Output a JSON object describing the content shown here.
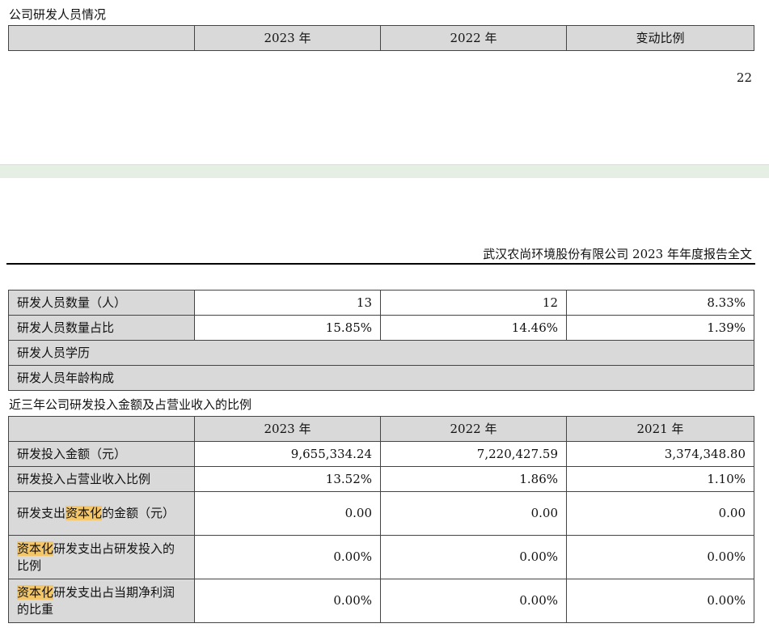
{
  "page1": {
    "section_title": "公司研发人员情况",
    "header": [
      "",
      "2023 年",
      "2022 年",
      "变动比例"
    ],
    "page_number": "22"
  },
  "page2": {
    "running_header": "武汉农尚环境股份有限公司 2023 年年度报告全文",
    "staff_rows": [
      {
        "label": "研发人员数量（人）",
        "v2023": "13",
        "v2022": "12",
        "change": "8.33%"
      },
      {
        "label": "研发人员数量占比",
        "v2023": "15.85%",
        "v2022": "14.46%",
        "change": "1.39%"
      },
      {
        "label": "研发人员学历"
      },
      {
        "label": "研发人员年龄构成"
      }
    ],
    "investment_title": "近三年公司研发投入金额及占营业收入的比例",
    "investment_header": [
      "",
      "2023 年",
      "2022 年",
      "2021 年"
    ],
    "investment_rows": [
      {
        "label": "研发投入金额（元）",
        "v2023": "9,655,334.24",
        "v2022": "7,220,427.59",
        "v2021": "3,374,348.80"
      },
      {
        "label": "研发投入占营业收入比例",
        "v2023": "13.52%",
        "v2022": "1.86%",
        "v2021": "1.10%"
      },
      {
        "label_pre": "研发支出",
        "label_hl": "资本化",
        "label_post": "的金额（元）",
        "v2023": "0.00",
        "v2022": "0.00",
        "v2021": "0.00"
      },
      {
        "label_pre": "",
        "label_hl": "资本化",
        "label_post": "研发支出占研发投入的比例",
        "v2023": "0.00%",
        "v2022": "0.00%",
        "v2021": "0.00%"
      },
      {
        "label_pre": "",
        "label_hl": "资本化",
        "label_post": "研发支出占当期净利润的比重",
        "v2023": "0.00%",
        "v2022": "0.00%",
        "v2021": "0.00%"
      }
    ]
  }
}
